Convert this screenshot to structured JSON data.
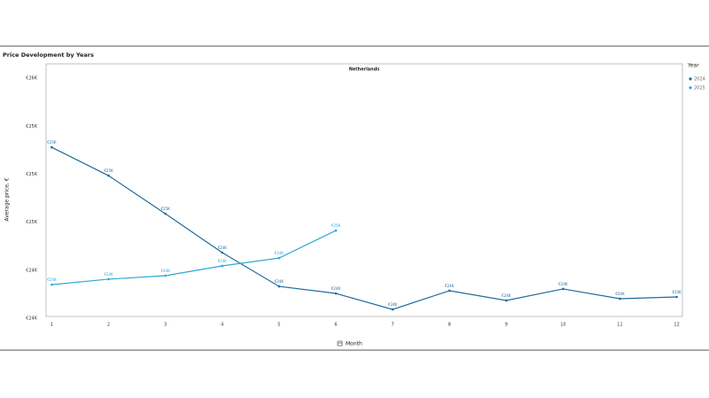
{
  "chart_data": {
    "type": "line",
    "title": "Price Development by Years",
    "subtitle": "Netherlands",
    "x_label": "Month",
    "y_label": "Average price, €",
    "legend_title": "Year",
    "x": [
      1,
      2,
      3,
      4,
      5,
      6,
      7,
      8,
      9,
      10,
      11,
      12
    ],
    "xlim": [
      0.9,
      12.1
    ],
    "xticks": [
      1,
      2,
      3,
      4,
      5,
      6,
      7,
      8,
      9,
      10,
      11,
      12
    ],
    "ylim": [
      24000,
      25590
    ],
    "yticks": [
      {
        "value": 24000,
        "label": "€24K"
      },
      {
        "value": 24300,
        "label": "€24K"
      },
      {
        "value": 24600,
        "label": "€25K"
      },
      {
        "value": 24900,
        "label": "€25K"
      },
      {
        "value": 25200,
        "label": "€25K"
      },
      {
        "value": 25500,
        "label": "€26K"
      }
    ],
    "series": [
      {
        "name": "2024",
        "color": "#1f6b99",
        "values": [
          25068,
          24891,
          24653,
          24410,
          24199,
          24155,
          24055,
          24172,
          24111,
          24183,
          24122,
          24133
        ],
        "value_labels": [
          "€25K",
          "€25K",
          "€25K",
          "€24K",
          "€24K",
          "€24K",
          "€24K",
          "€24K",
          "€24K",
          "€24K",
          "€24K",
          "€24K"
        ]
      },
      {
        "name": "2025",
        "color": "#2ea8d3",
        "values": [
          24210,
          24244,
          24266,
          24327,
          24376,
          24548,
          null,
          null,
          null,
          null,
          null,
          null
        ],
        "value_labels": [
          "€24K",
          "€24K",
          "€24K",
          "€24K",
          "€24K",
          "€25K",
          null,
          null,
          null,
          null,
          null,
          null
        ]
      }
    ]
  }
}
